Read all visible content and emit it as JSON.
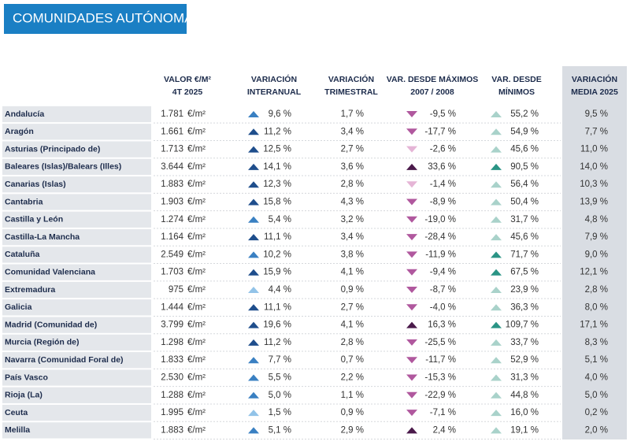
{
  "title": "COMUNIDADES AUTÓNOMAS",
  "unit": "€/m²",
  "table": {
    "headers": [
      [
        "VALOR €/M²",
        "4T 2025"
      ],
      [
        "VARIACIÓN",
        "INTERANUAL"
      ],
      [
        "VARIACIÓN",
        "TRIMESTRAL"
      ],
      [
        "VAR. DESDE MÁXIMOS",
        "2007 / 2008"
      ],
      [
        "VAR. DESDE",
        "MÍNIMOS"
      ],
      [
        "VARIACIÓN",
        "MEDIA 2025"
      ]
    ],
    "rows": [
      [
        "Andalucía",
        "1.781",
        "9,6 %",
        "1,7 %",
        "-9,5 %",
        "55,2 %",
        "9,5 %"
      ],
      [
        "Aragón",
        "1.661",
        "11,2 %",
        "3,4 %",
        "-17,7 %",
        "54,9 %",
        "7,7 %"
      ],
      [
        "Asturias (Principado de)",
        "1.713",
        "12,5 %",
        "2,7 %",
        "-2,6 %",
        "45,6 %",
        "11,0 %"
      ],
      [
        "Baleares (Islas)/Balears (Illes)",
        "3.644",
        "14,1 %",
        "3,6 %",
        "33,6 %",
        "90,5 %",
        "14,0 %"
      ],
      [
        "Canarias (Islas)",
        "1.883",
        "12,3 %",
        "2,8 %",
        "-1,4 %",
        "56,4 %",
        "10,3 %"
      ],
      [
        "Cantabria",
        "1.903",
        "15,8 %",
        "4,3 %",
        "-8,9 %",
        "50,4 %",
        "13,9 %"
      ],
      [
        "Castilla y León",
        "1.274",
        "5,4 %",
        "3,2 %",
        "-19,0 %",
        "31,7 %",
        "4,8 %"
      ],
      [
        "Castilla-La Mancha",
        "1.164",
        "11,1 %",
        "3,4 %",
        "-28,4 %",
        "45,6 %",
        "7,9 %"
      ],
      [
        "Cataluña",
        "2.549",
        "10,2 %",
        "3,8 %",
        "-11,9 %",
        "71,7 %",
        "9,0 %"
      ],
      [
        "Comunidad Valenciana",
        "1.703",
        "15,9 %",
        "4,1 %",
        "-9,4 %",
        "67,5 %",
        "12,1 %"
      ],
      [
        "Extremadura",
        "975",
        "4,4 %",
        "0,9 %",
        "-8,7 %",
        "23,9 %",
        "2,8 %"
      ],
      [
        "Galicia",
        "1.444",
        "11,1 %",
        "2,7 %",
        "-4,0 %",
        "36,3 %",
        "8,0 %"
      ],
      [
        "Madrid (Comunidad de)",
        "3.799",
        "19,6 %",
        "4,1 %",
        "16,3 %",
        "109,7 %",
        "17,1 %"
      ],
      [
        "Murcia (Región de)",
        "1.298",
        "11,2 %",
        "2,8 %",
        "-25,5 %",
        "33,7 %",
        "8,3 %"
      ],
      [
        "Navarra (Comunidad Foral de)",
        "1.833",
        "7,7 %",
        "0,7 %",
        "-11,7 %",
        "52,9 %",
        "5,1 %"
      ],
      [
        "País Vasco",
        "2.530",
        "5,5 %",
        "2,2 %",
        "-15,3 %",
        "31,3 %",
        "4,0 %"
      ],
      [
        "Rioja (La)",
        "1.288",
        "5,0 %",
        "1,1 %",
        "-22,9 %",
        "44,8 %",
        "5,0 %"
      ],
      [
        "Ceuta",
        "1.995",
        "1,5 %",
        "0,9 %",
        "-7,1 %",
        "16,0 %",
        "0,2 %"
      ],
      [
        "Melilla",
        "1.883",
        "5,1 %",
        "2,9 %",
        "2,4 %",
        "19,1 %",
        "2,0 %"
      ]
    ]
  }
}
